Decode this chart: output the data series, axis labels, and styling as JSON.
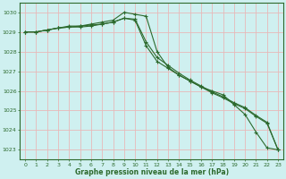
{
  "title": "Graphe pression niveau de la mer (hPa)",
  "background_color": "#cff0f0",
  "grid_color_v": "#e8b8b8",
  "grid_color_h": "#e8b8b8",
  "line_color": "#2d6a2d",
  "xlim": [
    -0.5,
    23.5
  ],
  "ylim": [
    1022.5,
    1030.5
  ],
  "yticks": [
    1023,
    1024,
    1025,
    1026,
    1027,
    1028,
    1029,
    1030
  ],
  "xticks": [
    0,
    1,
    2,
    3,
    4,
    5,
    6,
    7,
    8,
    9,
    10,
    11,
    12,
    13,
    14,
    15,
    16,
    17,
    18,
    19,
    20,
    21,
    22,
    23
  ],
  "series": [
    {
      "x": [
        0,
        1,
        2,
        3,
        4,
        5,
        6,
        7,
        8,
        9,
        10,
        11,
        12,
        13,
        14,
        15,
        16,
        17,
        18,
        19,
        20,
        21,
        22,
        23
      ],
      "y": [
        1029.0,
        1029.0,
        1029.1,
        1029.2,
        1029.3,
        1029.3,
        1029.4,
        1029.5,
        1029.6,
        1030.0,
        1029.9,
        1029.8,
        1028.0,
        1027.2,
        1026.8,
        1026.5,
        1026.2,
        1026.0,
        1025.8,
        1025.3,
        1024.8,
        1023.9,
        1023.1,
        1023.0
      ]
    },
    {
      "x": [
        0,
        1,
        2,
        3,
        4,
        5,
        6,
        7,
        8,
        9,
        10,
        11,
        12,
        13,
        14,
        15,
        16,
        17,
        18,
        19,
        20,
        21,
        22,
        23
      ],
      "y": [
        1029.0,
        1029.0,
        1029.1,
        1029.2,
        1029.25,
        1029.25,
        1029.3,
        1029.4,
        1029.5,
        1029.7,
        1029.65,
        1028.5,
        1027.7,
        1027.3,
        1026.9,
        1026.55,
        1026.25,
        1025.95,
        1025.7,
        1025.4,
        1025.15,
        1024.75,
        1024.4,
        1023.0
      ]
    },
    {
      "x": [
        0,
        1,
        2,
        3,
        4,
        5,
        6,
        7,
        8,
        9,
        10,
        11,
        12,
        13,
        14,
        15,
        16,
        17,
        18,
        19,
        20,
        21,
        22,
        23
      ],
      "y": [
        1029.0,
        1029.0,
        1029.1,
        1029.2,
        1029.25,
        1029.3,
        1029.35,
        1029.4,
        1029.5,
        1029.7,
        1029.6,
        1028.3,
        1027.5,
        1027.15,
        1026.8,
        1026.5,
        1026.2,
        1025.9,
        1025.65,
        1025.35,
        1025.1,
        1024.7,
        1024.35,
        1023.0
      ]
    }
  ]
}
